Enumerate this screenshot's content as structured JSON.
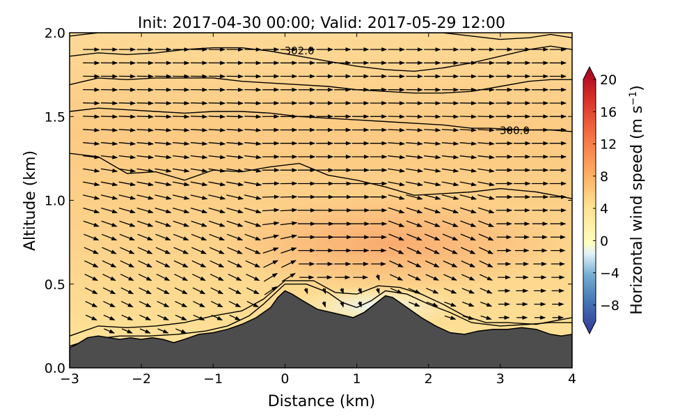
{
  "chart_data": {
    "type": "cross-section",
    "title": "Init: 2017-04-30 00:00; Valid: 2017-05-29 12:00",
    "xlabel": "Distance (km)",
    "ylabel": "Altitude (km)",
    "xlim": [
      -3,
      4
    ],
    "ylim": [
      0.0,
      2.0
    ],
    "x_ticks": [
      "−3",
      "−2",
      "−1",
      "0",
      "1",
      "2",
      "3",
      "4"
    ],
    "y_ticks": [
      "0.0",
      "0.5",
      "1.0",
      "1.5",
      "2.0"
    ],
    "colorbar": {
      "label": "Horizontal wind speed (m s",
      "label_exp": "−1",
      "label_close": ")",
      "range": [
        -10,
        20
      ],
      "ticks": [
        "20",
        "16",
        "12",
        "8",
        "4",
        "0",
        "−4",
        "−8"
      ],
      "colormap": "RdYlBu_r"
    },
    "terrain": {
      "x": [
        -3.0,
        -2.9,
        -2.75,
        -2.6,
        -2.45,
        -2.3,
        -2.15,
        -2.0,
        -1.85,
        -1.7,
        -1.55,
        -1.4,
        -1.2,
        -1.0,
        -0.8,
        -0.6,
        -0.4,
        -0.2,
        -0.1,
        0.0,
        0.1,
        0.25,
        0.45,
        0.65,
        0.85,
        0.95,
        1.1,
        1.25,
        1.4,
        1.5,
        1.7,
        1.9,
        2.1,
        2.3,
        2.5,
        2.7,
        2.9,
        3.1,
        3.3,
        3.5,
        3.7,
        3.85,
        4.0
      ],
      "altitude": [
        0.12,
        0.14,
        0.18,
        0.19,
        0.18,
        0.17,
        0.18,
        0.17,
        0.18,
        0.17,
        0.15,
        0.17,
        0.2,
        0.21,
        0.23,
        0.26,
        0.3,
        0.36,
        0.42,
        0.46,
        0.44,
        0.4,
        0.35,
        0.33,
        0.31,
        0.3,
        0.33,
        0.38,
        0.43,
        0.42,
        0.36,
        0.3,
        0.25,
        0.21,
        0.2,
        0.22,
        0.23,
        0.23,
        0.24,
        0.23,
        0.2,
        0.19,
        0.2
      ]
    },
    "theta_contours": [
      {
        "label": "",
        "x": [
          -3.0,
          -2.7,
          -2.3,
          -1.9,
          -1.5,
          -1.1,
          -0.8,
          -0.5,
          -0.3,
          -0.1,
          0.0,
          0.3,
          0.6,
          0.8,
          1.0,
          1.2,
          1.4,
          1.7,
          2.0,
          2.3,
          2.6,
          3.0,
          3.4,
          3.7,
          4.0
        ],
        "altitude": [
          0.13,
          0.17,
          0.19,
          0.19,
          0.2,
          0.22,
          0.25,
          0.31,
          0.38,
          0.46,
          0.5,
          0.5,
          0.45,
          0.39,
          0.36,
          0.4,
          0.46,
          0.44,
          0.38,
          0.33,
          0.27,
          0.25,
          0.26,
          0.27,
          0.27
        ]
      },
      {
        "label": "",
        "x": [
          -3.0,
          -2.6,
          -2.2,
          -1.8,
          -1.4,
          -1.0,
          -0.6,
          -0.3,
          0.0,
          0.4,
          0.7,
          1.0,
          1.3,
          1.6,
          1.9,
          2.2,
          2.5,
          2.8,
          3.1,
          3.5,
          4.0
        ],
        "altitude": [
          0.19,
          0.25,
          0.24,
          0.25,
          0.27,
          0.31,
          0.34,
          0.41,
          0.52,
          0.52,
          0.45,
          0.44,
          0.49,
          0.48,
          0.44,
          0.38,
          0.31,
          0.27,
          0.27,
          0.26,
          0.3
        ]
      },
      {
        "label": "",
        "x": [
          -3.0,
          -2.6,
          -2.2,
          -1.8,
          -1.4,
          -1.0,
          -0.6,
          -0.2,
          0.2,
          0.6,
          1.0,
          1.4,
          1.8,
          2.2,
          2.6,
          3.0,
          3.5,
          4.0
        ],
        "altitude": [
          1.28,
          1.26,
          1.16,
          1.17,
          1.12,
          1.18,
          1.17,
          1.2,
          1.22,
          1.15,
          1.12,
          1.08,
          1.03,
          1.04,
          1.05,
          1.07,
          1.05,
          1.01
        ]
      },
      {
        "label": "300.0",
        "x": [
          -3.0,
          -2.6,
          -2.2,
          -1.8,
          -1.4,
          -1.0,
          -0.6,
          -0.2,
          0.2,
          0.6,
          1.0,
          1.4,
          1.8,
          2.2,
          2.6,
          2.85,
          3.35,
          3.7,
          4.0
        ],
        "altitude": [
          1.53,
          1.55,
          1.54,
          1.53,
          1.52,
          1.53,
          1.53,
          1.52,
          1.5,
          1.49,
          1.48,
          1.47,
          1.46,
          1.45,
          1.43,
          1.43,
          1.42,
          1.42,
          1.41
        ]
      },
      {
        "label": "",
        "x": [
          -3.0,
          -2.6,
          -2.2,
          -1.8,
          -1.4,
          -1.0,
          -0.6,
          -0.2,
          0.2,
          0.6,
          1.0,
          1.4,
          1.8,
          2.2,
          2.6,
          3.0,
          3.4,
          3.7,
          4.0
        ],
        "altitude": [
          1.69,
          1.73,
          1.72,
          1.73,
          1.73,
          1.73,
          1.71,
          1.7,
          1.69,
          1.68,
          1.66,
          1.65,
          1.64,
          1.64,
          1.65,
          1.68,
          1.71,
          1.72,
          1.72
        ]
      },
      {
        "label": "302.0",
        "x": [
          -3.0,
          -2.6,
          -2.2,
          -1.8,
          -1.4,
          -1.0,
          -0.6,
          -0.2,
          0.2,
          0.6,
          1.0,
          1.4,
          1.8,
          2.2,
          2.6,
          3.0,
          3.4,
          3.7,
          4.0
        ],
        "altitude": [
          1.86,
          1.88,
          1.87,
          1.88,
          1.9,
          1.91,
          1.91,
          1.89,
          1.86,
          1.83,
          1.8,
          1.78,
          1.77,
          1.79,
          1.82,
          1.86,
          1.9,
          1.92,
          1.9
        ]
      },
      {
        "label": "",
        "x": [
          -3.0,
          -2.6,
          -2.2,
          -1.8,
          -1.4,
          -1.0,
          -0.6,
          -0.2,
          0.2,
          0.6,
          1.0,
          1.4,
          1.8,
          2.2,
          2.6,
          3.0,
          3.4,
          3.7,
          4.0
        ],
        "altitude": [
          1.98,
          2.0,
          2.0,
          2.0,
          2.0,
          2.0,
          2.0,
          2.0,
          2.0,
          2.0,
          2.0,
          2.0,
          2.0,
          2.0,
          1.98,
          1.96,
          1.97,
          1.99,
          1.97
        ]
      }
    ]
  }
}
